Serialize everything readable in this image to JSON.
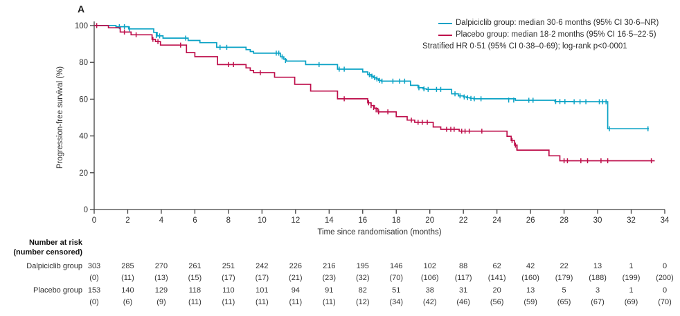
{
  "chart_data": {
    "type": "line",
    "subtype": "kaplan-meier-step",
    "panel_label": "A",
    "title": "",
    "xlabel": "Time since randomisation (months)",
    "ylabel": "Progression-free survival (%)",
    "xlim": [
      0,
      34
    ],
    "ylim": [
      0,
      100
    ],
    "x_ticks": [
      0,
      2,
      4,
      6,
      8,
      10,
      12,
      14,
      16,
      18,
      20,
      22,
      24,
      26,
      28,
      30,
      32,
      34
    ],
    "y_ticks": [
      0,
      20,
      40,
      60,
      80,
      100
    ],
    "grid": false,
    "legend_position": "top-right",
    "axis_color": "#404040",
    "tick_label_color": "#2e2e2e",
    "series": [
      {
        "name": "Dalpiciclib group",
        "color": "#0aa2c5",
        "median_months": "30.6",
        "end_x": 33.05,
        "steps": [
          [
            0,
            100
          ],
          [
            1.3,
            99.4
          ],
          [
            2.05,
            98.2
          ],
          [
            3.55,
            96.3
          ],
          [
            3.75,
            94.4
          ],
          [
            4.1,
            93.2
          ],
          [
            5.6,
            91.9
          ],
          [
            6.3,
            90.7
          ],
          [
            7.3,
            88.2
          ],
          [
            9.05,
            86.9
          ],
          [
            9.3,
            85.9
          ],
          [
            9.5,
            85.0
          ],
          [
            11.1,
            83.0
          ],
          [
            11.3,
            81.7
          ],
          [
            11.45,
            80.7
          ],
          [
            12.6,
            78.8
          ],
          [
            14.5,
            76.3
          ],
          [
            16.0,
            74.8
          ],
          [
            16.3,
            73.3
          ],
          [
            16.5,
            72.5
          ],
          [
            16.65,
            71.7
          ],
          [
            16.8,
            71.0
          ],
          [
            16.95,
            70.2
          ],
          [
            17.1,
            69.8
          ],
          [
            18.85,
            67.5
          ],
          [
            19.3,
            66.2
          ],
          [
            19.6,
            65.6
          ],
          [
            19.8,
            65.3
          ],
          [
            21.3,
            62.9
          ],
          [
            21.7,
            61.8
          ],
          [
            22.0,
            61.2
          ],
          [
            22.2,
            60.8
          ],
          [
            22.4,
            60.4
          ],
          [
            22.6,
            60.2
          ],
          [
            25.1,
            59.4
          ],
          [
            27.45,
            58.7
          ],
          [
            28.5,
            58.6
          ],
          [
            30.6,
            43.9
          ]
        ],
        "censors": [
          [
            1.5,
            99.4
          ],
          [
            1.8,
            99.4
          ],
          [
            2.1,
            98.2
          ],
          [
            3.7,
            94.6
          ],
          [
            3.9,
            94.4
          ],
          [
            5.45,
            93.2
          ],
          [
            7.5,
            88.2
          ],
          [
            7.9,
            88.2
          ],
          [
            10.85,
            85.0
          ],
          [
            11.0,
            85.0
          ],
          [
            11.2,
            83.0
          ],
          [
            11.4,
            81.0
          ],
          [
            13.4,
            78.8
          ],
          [
            14.6,
            76.3
          ],
          [
            14.9,
            76.3
          ],
          [
            16.4,
            73.3
          ],
          [
            16.55,
            72.5
          ],
          [
            16.7,
            71.7
          ],
          [
            16.85,
            71.0
          ],
          [
            17.0,
            70.2
          ],
          [
            17.15,
            69.8
          ],
          [
            17.8,
            69.8
          ],
          [
            18.2,
            69.8
          ],
          [
            18.5,
            69.8
          ],
          [
            19.35,
            66.2
          ],
          [
            19.65,
            65.6
          ],
          [
            19.9,
            65.3
          ],
          [
            20.4,
            65.3
          ],
          [
            20.65,
            65.3
          ],
          [
            21.5,
            62.9
          ],
          [
            21.8,
            61.8
          ],
          [
            22.05,
            61.2
          ],
          [
            22.25,
            60.8
          ],
          [
            22.45,
            60.4
          ],
          [
            22.65,
            60.2
          ],
          [
            23.05,
            60.2
          ],
          [
            24.7,
            59.5
          ],
          [
            25.0,
            59.5
          ],
          [
            25.9,
            59.4
          ],
          [
            26.15,
            59.4
          ],
          [
            27.5,
            58.7
          ],
          [
            27.75,
            58.7
          ],
          [
            28.05,
            58.7
          ],
          [
            28.6,
            58.6
          ],
          [
            28.95,
            58.6
          ],
          [
            29.3,
            58.6
          ],
          [
            30.1,
            58.6
          ],
          [
            30.3,
            58.6
          ],
          [
            30.5,
            58.6
          ],
          [
            30.7,
            43.9
          ],
          [
            33.0,
            43.9
          ]
        ]
      },
      {
        "name": "Placebo group",
        "color": "#be0f4b",
        "median_months": "18.2",
        "end_x": 33.4,
        "steps": [
          [
            0,
            100
          ],
          [
            0.85,
            98.8
          ],
          [
            1.55,
            96.5
          ],
          [
            2.2,
            95.0
          ],
          [
            3.45,
            92.5
          ],
          [
            3.65,
            91.3
          ],
          [
            3.95,
            89.4
          ],
          [
            5.5,
            85.3
          ],
          [
            6.0,
            83.1
          ],
          [
            7.35,
            78.8
          ],
          [
            9.05,
            77.0
          ],
          [
            9.3,
            75.6
          ],
          [
            9.5,
            74.4
          ],
          [
            10.75,
            71.9
          ],
          [
            11.95,
            68.1
          ],
          [
            12.9,
            64.4
          ],
          [
            14.5,
            60.2
          ],
          [
            16.3,
            58.0
          ],
          [
            16.5,
            56.5
          ],
          [
            16.7,
            55.0
          ],
          [
            16.9,
            53.1
          ],
          [
            18.0,
            50.5
          ],
          [
            18.65,
            48.6
          ],
          [
            19.1,
            47.4
          ],
          [
            20.2,
            44.9
          ],
          [
            20.65,
            43.6
          ],
          [
            21.75,
            42.6
          ],
          [
            24.6,
            39.8
          ],
          [
            24.85,
            37.5
          ],
          [
            25.05,
            35.0
          ],
          [
            25.2,
            32.3
          ],
          [
            27.1,
            29.2
          ],
          [
            27.75,
            26.5
          ]
        ],
        "censors": [
          [
            0.15,
            100
          ],
          [
            1.8,
            96.5
          ],
          [
            2.5,
            95.0
          ],
          [
            3.5,
            92.5
          ],
          [
            3.8,
            91.3
          ],
          [
            5.15,
            89.4
          ],
          [
            8.0,
            78.8
          ],
          [
            8.3,
            78.8
          ],
          [
            9.9,
            74.4
          ],
          [
            14.9,
            60.2
          ],
          [
            16.35,
            58.0
          ],
          [
            16.5,
            56.5
          ],
          [
            16.65,
            55.5
          ],
          [
            16.8,
            54.2
          ],
          [
            16.95,
            53.1
          ],
          [
            17.5,
            53.1
          ],
          [
            18.9,
            48.6
          ],
          [
            19.3,
            47.4
          ],
          [
            19.55,
            47.4
          ],
          [
            19.85,
            47.4
          ],
          [
            21.0,
            43.6
          ],
          [
            21.25,
            43.6
          ],
          [
            21.45,
            43.6
          ],
          [
            21.9,
            42.6
          ],
          [
            22.1,
            42.6
          ],
          [
            22.35,
            42.6
          ],
          [
            23.1,
            42.6
          ],
          [
            24.9,
            37.5
          ],
          [
            25.1,
            35.0
          ],
          [
            25.18,
            33.5
          ],
          [
            28.0,
            26.5
          ],
          [
            28.2,
            26.5
          ],
          [
            29.0,
            26.5
          ],
          [
            29.4,
            26.5
          ],
          [
            30.2,
            26.5
          ],
          [
            30.6,
            26.5
          ],
          [
            33.2,
            26.5
          ]
        ]
      }
    ]
  },
  "legend": {
    "entries": [
      {
        "label": "Dalpiciclib group: median 30·6 months (95% CI 30·6–NR)",
        "color": "#0aa2c5"
      },
      {
        "label": "Placebo group: median 18·2 months (95% CI 16·5–22·5)",
        "color": "#be0f4b"
      }
    ],
    "note": "Stratified HR 0·51 (95% CI 0·38–0·69); log-rank p<0·0001"
  },
  "risk_table": {
    "header_line1": "Number at risk",
    "header_line2": "(number censored)",
    "timepoints": [
      0,
      2,
      4,
      6,
      8,
      10,
      12,
      14,
      16,
      18,
      20,
      22,
      24,
      26,
      28,
      30,
      32,
      34
    ],
    "rows": [
      {
        "label": "Dalpiciclib group",
        "at_risk": [
          "303",
          "285",
          "270",
          "261",
          "251",
          "242",
          "226",
          "216",
          "195",
          "146",
          "102",
          "88",
          "62",
          "42",
          "22",
          "13",
          "1",
          "0"
        ],
        "censored": [
          "(0)",
          "(11)",
          "(13)",
          "(15)",
          "(17)",
          "(17)",
          "(21)",
          "(23)",
          "(32)",
          "(70)",
          "(106)",
          "(117)",
          "(141)",
          "(160)",
          "(179)",
          "(188)",
          "(199)",
          "(200)"
        ]
      },
      {
        "label": "Placebo group",
        "at_risk": [
          "153",
          "140",
          "129",
          "118",
          "110",
          "101",
          "94",
          "91",
          "82",
          "51",
          "38",
          "31",
          "20",
          "13",
          "5",
          "3",
          "1",
          "0"
        ],
        "censored": [
          "(0)",
          "(6)",
          "(9)",
          "(11)",
          "(11)",
          "(11)",
          "(11)",
          "(11)",
          "(12)",
          "(34)",
          "(42)",
          "(46)",
          "(56)",
          "(59)",
          "(65)",
          "(67)",
          "(69)",
          "(70)"
        ]
      }
    ]
  }
}
